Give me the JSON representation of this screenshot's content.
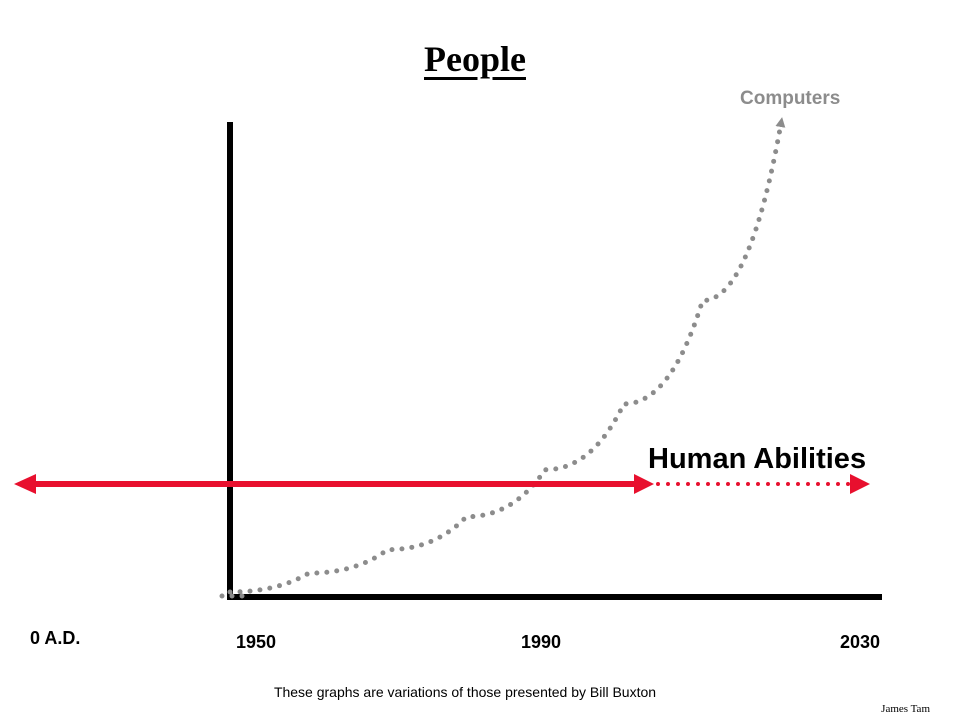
{
  "chart_data": {
    "type": "line",
    "title": "People",
    "x_ticks": [
      "0 A.D.",
      "1950",
      "1990",
      "2030"
    ],
    "series": [
      {
        "name": "Computers",
        "style": "dotted-arrow",
        "color": "#8c8c8c",
        "x": [
          1950,
          1960,
          1970,
          1980,
          1990,
          2000,
          2010,
          2020
        ],
        "values": [
          0,
          4,
          9,
          16,
          26,
          40,
          62,
          100
        ]
      },
      {
        "name": "Human Abilities",
        "style": "solid-then-dotted",
        "color": "#e8102e",
        "x": [
          "0 A.D.",
          2005,
          2030
        ],
        "values": [
          23,
          23,
          23
        ]
      }
    ],
    "grid": false,
    "legend": "none"
  },
  "footnote": "These graphs are variations of those presented by Bill Buxton",
  "author": "James Tam"
}
